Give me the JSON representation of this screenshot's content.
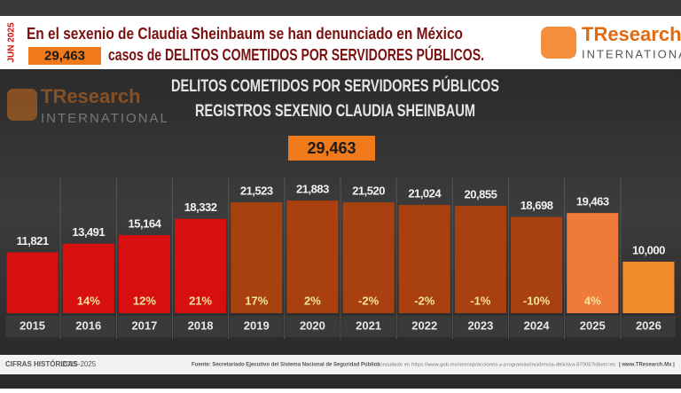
{
  "header": {
    "date": "JUN 2025",
    "line1": "En el sexenio de Claudia Sheinbaum se han denunciado en México",
    "total": "29,463",
    "line2": "casos de DELITOS COMETIDOS POR SERVIDORES PÚBLICOS."
  },
  "brand": {
    "name": "TResearch",
    "sub": "INTERNATIONAL"
  },
  "chart_data": {
    "type": "bar",
    "title": "DELITOS COMETIDOS POR SERVIDORES PÚBLICOS",
    "subtitle": "REGISTROS SEXENIO CLAUDIA SHEINBAUM",
    "total_label": "29,463",
    "categories": [
      "2015",
      "2016",
      "2017",
      "2018",
      "2019",
      "2020",
      "2021",
      "2022",
      "2023",
      "2024",
      "2025",
      "2026"
    ],
    "values": [
      11821,
      13491,
      15164,
      18332,
      21523,
      21883,
      21520,
      21024,
      20855,
      18698,
      19463,
      10000
    ],
    "value_labels": [
      "11,821",
      "13,491",
      "15,164",
      "18,332",
      "21,523",
      "21,883",
      "21,520",
      "21,024",
      "20,855",
      "18,698",
      "19,463",
      "10,000"
    ],
    "colors": [
      "#d80f0f",
      "#d80f0f",
      "#d80f0f",
      "#d80f0f",
      "#a8400f",
      "#a8400f",
      "#a8400f",
      "#a8400f",
      "#a8400f",
      "#a8400f",
      "#f07a3a",
      "#f08a2a"
    ],
    "changes": [
      null,
      14,
      12,
      21,
      17,
      2,
      -2,
      -2,
      -1,
      -10,
      4,
      null
    ],
    "change_labels": [
      null,
      "14%",
      "12%",
      "21%",
      "17%",
      "2%",
      "-2%",
      "-2%",
      "-1%",
      "-10%",
      "4%",
      null
    ],
    "ylim": [
      0,
      25000
    ]
  },
  "footer": {
    "label": "CIFRAS HISTÓRICAS",
    "period": "2015-2025",
    "source": "Fuente: Secretariado Ejecutivo del Sistema Nacional de Seguridad Pública",
    "consulted": "Consultado en https://www.gob.mx/sesnsp/acciones-y-programas/incidencia-delictiva-87005?idiom=es",
    "site": "| www.TResearch.Mx |"
  }
}
